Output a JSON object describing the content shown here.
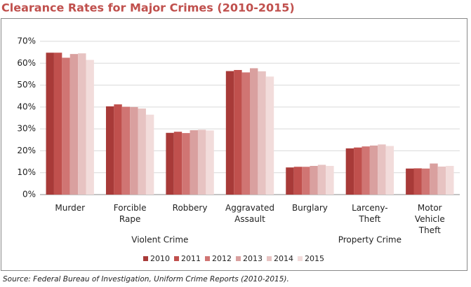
{
  "chart_data": {
    "type": "bar",
    "title": "Clearance Rates for Major Crimes (2010-2015)",
    "categories": [
      "Murder",
      "Forcible Rape",
      "Robbery",
      "Aggravated Assault",
      "Burglary",
      "Larceny-Theft",
      "Motor Vehicle Theft"
    ],
    "group_labels": [
      "Violent Crime",
      "Property Crime"
    ],
    "series": [
      {
        "name": "2010",
        "color": "#a83a38",
        "values": [
          64.8,
          40.3,
          28.2,
          56.4,
          12.4,
          21.1,
          11.9
        ]
      },
      {
        "name": "2011",
        "color": "#c0504d",
        "values": [
          64.8,
          41.2,
          28.7,
          56.9,
          12.7,
          21.5,
          12.0
        ]
      },
      {
        "name": "2012",
        "color": "#d07573",
        "values": [
          62.5,
          40.1,
          28.1,
          55.8,
          12.7,
          22.0,
          11.9
        ]
      },
      {
        "name": "2013",
        "color": "#d9a09f",
        "values": [
          64.2,
          40.0,
          29.4,
          57.7,
          13.1,
          22.4,
          14.2
        ]
      },
      {
        "name": "2014",
        "color": "#e7c3c2",
        "values": [
          64.5,
          39.3,
          29.6,
          56.3,
          13.6,
          22.9,
          12.8
        ]
      },
      {
        "name": "2015",
        "color": "#f2dcdb",
        "values": [
          61.5,
          36.5,
          29.3,
          53.9,
          13.1,
          22.2,
          13.1
        ]
      }
    ],
    "ylim": [
      0,
      70
    ],
    "yticks": [
      {
        "value": 0,
        "label": "0%"
      },
      {
        "value": 10,
        "label": "10%"
      },
      {
        "value": 20,
        "label": "20%"
      },
      {
        "value": 30,
        "label": "30%"
      },
      {
        "value": 40,
        "label": "40%"
      },
      {
        "value": 50,
        "label": "50%"
      },
      {
        "value": 60,
        "label": "60%"
      },
      {
        "value": 70,
        "label": "70%"
      }
    ],
    "grid": true,
    "source": "Source: Federal Bureau of Investigation, Uniform Crime Reports (2010-2015)."
  }
}
